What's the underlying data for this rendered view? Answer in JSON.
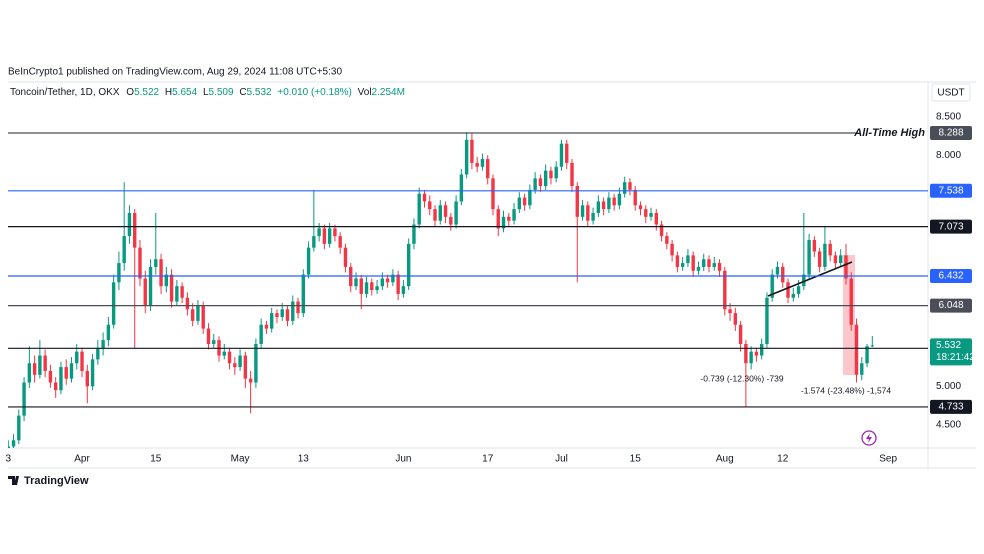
{
  "chart_data": {
    "type": "candlestick",
    "title": "BeInCrypto1 published on TradingView.com, Aug 29, 2024 11:08 UTC+5:30",
    "symbol": "Toncoin/Tether, 1D, OKX",
    "legend": [
      {
        "label": "O",
        "value": "5.522"
      },
      {
        "label": "H",
        "value": "5.654"
      },
      {
        "label": "L",
        "value": "5.509"
      },
      {
        "label": "C",
        "value": "5.532"
      }
    ],
    "change": "+0.010 (+0.18%)",
    "volume": {
      "label": "Vol",
      "value": "2.254M"
    },
    "currency": "USDT",
    "branding": "TradingView",
    "colors": {
      "up": "#089981",
      "down": "#f23645"
    },
    "xlim": [
      "2024-03-17",
      "2024-09-08"
    ],
    "xticks": [
      {
        "value": "2024-03-18",
        "label": "3"
      },
      {
        "value": "2024-04-01",
        "label": "Apr"
      },
      {
        "value": "2024-04-15",
        "label": "15"
      },
      {
        "value": "2024-05-01",
        "label": "May"
      },
      {
        "value": "2024-05-13",
        "label": "13"
      },
      {
        "value": "2024-06-01",
        "label": "Jun"
      },
      {
        "value": "2024-06-17",
        "label": "17"
      },
      {
        "value": "2024-07-01",
        "label": "Jul"
      },
      {
        "value": "2024-07-15",
        "label": "15"
      },
      {
        "value": "2024-08-01",
        "label": "Aug"
      },
      {
        "value": "2024-08-12",
        "label": "12"
      },
      {
        "value": "2024-09-01",
        "label": "Sep"
      }
    ],
    "ylim": [
      4.2,
      8.95
    ],
    "yticks": [
      {
        "value": 8.5,
        "label": "8.500"
      },
      {
        "value": 8,
        "label": "8.000"
      },
      {
        "value": 5,
        "label": "5.000"
      },
      {
        "value": 4.5,
        "label": "4.500"
      }
    ],
    "levels": [
      {
        "value": 8.288,
        "color": "#4a4e59",
        "name": "All-Time High"
      },
      {
        "value": 7.538,
        "color": "#2962ff"
      },
      {
        "value": 7.073,
        "color": "#131722"
      },
      {
        "value": 6.432,
        "color": "#2962ff"
      },
      {
        "value": 6.048,
        "color": "#4a4e59"
      },
      {
        "value": 5.494,
        "color": "#131722"
      },
      {
        "value": 4.733,
        "color": "#131722"
      }
    ],
    "last": {
      "value": 5.532,
      "countdown": "18:21:42",
      "color": "#089981"
    },
    "annotations": [
      "-0.739 (-12.30%) -739",
      "-1.574 (-23.48%) -1,574"
    ],
    "x": [
      "2024-03-18",
      "2024-03-19",
      "2024-03-20",
      "2024-03-21",
      "2024-03-22",
      "2024-03-23",
      "2024-03-24",
      "2024-03-25",
      "2024-03-26",
      "2024-03-27",
      "2024-03-28",
      "2024-03-29",
      "2024-03-30",
      "2024-03-31",
      "2024-04-01",
      "2024-04-02",
      "2024-04-03",
      "2024-04-04",
      "2024-04-05",
      "2024-04-06",
      "2024-04-07",
      "2024-04-08",
      "2024-04-09",
      "2024-04-10",
      "2024-04-11",
      "2024-04-12",
      "2024-04-13",
      "2024-04-14",
      "2024-04-15",
      "2024-04-16",
      "2024-04-17",
      "2024-04-18",
      "2024-04-19",
      "2024-04-20",
      "2024-04-21",
      "2024-04-22",
      "2024-04-23",
      "2024-04-24",
      "2024-04-25",
      "2024-04-26",
      "2024-04-27",
      "2024-04-28",
      "2024-04-29",
      "2024-04-30",
      "2024-05-01",
      "2024-05-02",
      "2024-05-03",
      "2024-05-04",
      "2024-05-05",
      "2024-05-06",
      "2024-05-07",
      "2024-05-08",
      "2024-05-09",
      "2024-05-10",
      "2024-05-11",
      "2024-05-12",
      "2024-05-13",
      "2024-05-14",
      "2024-05-15",
      "2024-05-16",
      "2024-05-17",
      "2024-05-18",
      "2024-05-19",
      "2024-05-20",
      "2024-05-21",
      "2024-05-22",
      "2024-05-23",
      "2024-05-24",
      "2024-05-25",
      "2024-05-26",
      "2024-05-27",
      "2024-05-28",
      "2024-05-29",
      "2024-05-30",
      "2024-05-31",
      "2024-06-01",
      "2024-06-02",
      "2024-06-03",
      "2024-06-04",
      "2024-06-05",
      "2024-06-06",
      "2024-06-07",
      "2024-06-08",
      "2024-06-09",
      "2024-06-10",
      "2024-06-11",
      "2024-06-12",
      "2024-06-13",
      "2024-06-14",
      "2024-06-15",
      "2024-06-16",
      "2024-06-17",
      "2024-06-18",
      "2024-06-19",
      "2024-06-20",
      "2024-06-21",
      "2024-06-22",
      "2024-06-23",
      "2024-06-24",
      "2024-06-25",
      "2024-06-26",
      "2024-06-27",
      "2024-06-28",
      "2024-06-29",
      "2024-06-30",
      "2024-07-01",
      "2024-07-02",
      "2024-07-03",
      "2024-07-04",
      "2024-07-05",
      "2024-07-06",
      "2024-07-07",
      "2024-07-08",
      "2024-07-09",
      "2024-07-10",
      "2024-07-11",
      "2024-07-12",
      "2024-07-13",
      "2024-07-14",
      "2024-07-15",
      "2024-07-16",
      "2024-07-17",
      "2024-07-18",
      "2024-07-19",
      "2024-07-20",
      "2024-07-21",
      "2024-07-22",
      "2024-07-23",
      "2024-07-24",
      "2024-07-25",
      "2024-07-26",
      "2024-07-27",
      "2024-07-28",
      "2024-07-29",
      "2024-07-30",
      "2024-07-31",
      "2024-08-01",
      "2024-08-02",
      "2024-08-03",
      "2024-08-04",
      "2024-08-05",
      "2024-08-06",
      "2024-08-07",
      "2024-08-08",
      "2024-08-09",
      "2024-08-10",
      "2024-08-11",
      "2024-08-12",
      "2024-08-13",
      "2024-08-14",
      "2024-08-15",
      "2024-08-16",
      "2024-08-17",
      "2024-08-18",
      "2024-08-19",
      "2024-08-20",
      "2024-08-21",
      "2024-08-22",
      "2024-08-23",
      "2024-08-24",
      "2024-08-25",
      "2024-08-26",
      "2024-08-27",
      "2024-08-28",
      "2024-08-29"
    ],
    "ohlc": [
      [
        4.18,
        4.3,
        4.12,
        4.22
      ],
      [
        4.22,
        4.38,
        4.18,
        4.3
      ],
      [
        4.3,
        4.7,
        4.25,
        4.62
      ],
      [
        4.62,
        5.12,
        4.55,
        5.05
      ],
      [
        5.05,
        5.52,
        4.98,
        5.3
      ],
      [
        5.3,
        5.4,
        5.05,
        5.15
      ],
      [
        5.15,
        5.6,
        5.1,
        5.4
      ],
      [
        5.4,
        5.48,
        5.12,
        5.2
      ],
      [
        5.2,
        5.28,
        4.98,
        5.05
      ],
      [
        5.05,
        5.12,
        4.85,
        4.95
      ],
      [
        4.95,
        5.32,
        4.9,
        5.25
      ],
      [
        5.25,
        5.35,
        5.02,
        5.1
      ],
      [
        5.1,
        5.38,
        5.05,
        5.3
      ],
      [
        5.3,
        5.55,
        5.22,
        5.45
      ],
      [
        5.45,
        5.5,
        5.12,
        5.2
      ],
      [
        5.2,
        5.28,
        4.78,
        5.0
      ],
      [
        5.0,
        5.42,
        4.95,
        5.35
      ],
      [
        5.35,
        5.6,
        5.28,
        5.5
      ],
      [
        5.5,
        5.7,
        5.4,
        5.6
      ],
      [
        5.6,
        5.9,
        5.52,
        5.8
      ],
      [
        5.8,
        6.45,
        5.75,
        6.35
      ],
      [
        6.35,
        6.75,
        6.25,
        6.6
      ],
      [
        6.6,
        7.65,
        6.5,
        6.95
      ],
      [
        6.95,
        7.35,
        6.85,
        7.25
      ],
      [
        7.25,
        7.3,
        5.5,
        6.8
      ],
      [
        6.8,
        6.9,
        6.3,
        6.4
      ],
      [
        6.4,
        6.5,
        5.95,
        6.05
      ],
      [
        6.05,
        6.65,
        5.98,
        6.55
      ],
      [
        6.55,
        7.25,
        6.45,
        6.65
      ],
      [
        6.65,
        6.72,
        6.2,
        6.3
      ],
      [
        6.3,
        6.55,
        6.22,
        6.45
      ],
      [
        6.45,
        6.52,
        6.02,
        6.1
      ],
      [
        6.1,
        6.38,
        6.05,
        6.3
      ],
      [
        6.3,
        6.35,
        6.08,
        6.15
      ],
      [
        6.15,
        6.22,
        5.92,
        6.0
      ],
      [
        6.0,
        6.08,
        5.78,
        5.85
      ],
      [
        5.85,
        6.12,
        5.8,
        6.05
      ],
      [
        6.05,
        6.1,
        5.68,
        5.75
      ],
      [
        5.75,
        5.82,
        5.48,
        5.55
      ],
      [
        5.55,
        5.68,
        5.5,
        5.6
      ],
      [
        5.6,
        5.65,
        5.32,
        5.4
      ],
      [
        5.4,
        5.55,
        5.35,
        5.45
      ],
      [
        5.45,
        5.5,
        5.22,
        5.3
      ],
      [
        5.3,
        5.38,
        5.15,
        5.25
      ],
      [
        5.25,
        5.48,
        5.2,
        5.4
      ],
      [
        5.4,
        5.45,
        4.98,
        5.1
      ],
      [
        5.1,
        5.2,
        4.65,
        5.05
      ],
      [
        5.05,
        5.62,
        4.98,
        5.55
      ],
      [
        5.55,
        5.88,
        5.5,
        5.8
      ],
      [
        5.8,
        5.85,
        5.68,
        5.75
      ],
      [
        5.75,
        6.02,
        5.7,
        5.95
      ],
      [
        5.95,
        6.0,
        5.82,
        5.9
      ],
      [
        5.9,
        6.08,
        5.85,
        6.0
      ],
      [
        6.0,
        6.05,
        5.78,
        5.85
      ],
      [
        5.85,
        6.18,
        5.8,
        6.1
      ],
      [
        6.1,
        6.15,
        5.88,
        5.95
      ],
      [
        5.95,
        6.52,
        5.9,
        6.45
      ],
      [
        6.45,
        6.88,
        6.4,
        6.8
      ],
      [
        6.8,
        7.55,
        6.75,
        6.95
      ],
      [
        6.95,
        7.12,
        6.88,
        7.05
      ],
      [
        7.05,
        7.1,
        6.78,
        6.85
      ],
      [
        6.85,
        7.12,
        6.8,
        7.05
      ],
      [
        7.05,
        7.1,
        6.88,
        6.95
      ],
      [
        6.95,
        7.0,
        6.72,
        6.8
      ],
      [
        6.8,
        6.85,
        6.48,
        6.55
      ],
      [
        6.55,
        6.6,
        6.22,
        6.3
      ],
      [
        6.3,
        6.48,
        6.25,
        6.4
      ],
      [
        6.4,
        6.45,
        6.0,
        6.2
      ],
      [
        6.2,
        6.42,
        6.15,
        6.35
      ],
      [
        6.35,
        6.4,
        6.18,
        6.25
      ],
      [
        6.25,
        6.38,
        6.2,
        6.3
      ],
      [
        6.3,
        6.48,
        6.25,
        6.4
      ],
      [
        6.4,
        6.45,
        6.28,
        6.35
      ],
      [
        6.35,
        6.52,
        6.3,
        6.45
      ],
      [
        6.45,
        6.5,
        6.12,
        6.2
      ],
      [
        6.2,
        6.38,
        6.15,
        6.3
      ],
      [
        6.3,
        6.92,
        6.25,
        6.85
      ],
      [
        6.85,
        7.18,
        6.78,
        7.1
      ],
      [
        7.1,
        7.58,
        7.05,
        7.5
      ],
      [
        7.5,
        7.55,
        7.32,
        7.4
      ],
      [
        7.4,
        7.48,
        7.22,
        7.3
      ],
      [
        7.3,
        7.35,
        7.08,
        7.15
      ],
      [
        7.15,
        7.42,
        7.1,
        7.35
      ],
      [
        7.35,
        7.4,
        7.12,
        7.2
      ],
      [
        7.2,
        7.25,
        7.02,
        7.1
      ],
      [
        7.1,
        7.48,
        7.05,
        7.4
      ],
      [
        7.4,
        7.82,
        7.35,
        7.75
      ],
      [
        7.75,
        8.3,
        7.7,
        8.2
      ],
      [
        8.2,
        8.28,
        7.82,
        7.9
      ],
      [
        7.9,
        7.98,
        7.78,
        7.85
      ],
      [
        7.85,
        8.02,
        7.8,
        7.95
      ],
      [
        7.95,
        8.0,
        7.62,
        7.7
      ],
      [
        7.7,
        7.75,
        7.22,
        7.3
      ],
      [
        7.3,
        7.35,
        6.95,
        7.05
      ],
      [
        7.05,
        7.28,
        7.0,
        7.2
      ],
      [
        7.2,
        7.25,
        7.08,
        7.15
      ],
      [
        7.15,
        7.38,
        7.1,
        7.3
      ],
      [
        7.3,
        7.52,
        7.25,
        7.45
      ],
      [
        7.45,
        7.5,
        7.28,
        7.35
      ],
      [
        7.35,
        7.62,
        7.3,
        7.55
      ],
      [
        7.55,
        7.78,
        7.5,
        7.7
      ],
      [
        7.7,
        7.75,
        7.52,
        7.6
      ],
      [
        7.6,
        7.88,
        7.55,
        7.8
      ],
      [
        7.8,
        7.85,
        7.62,
        7.7
      ],
      [
        7.7,
        7.92,
        7.65,
        7.85
      ],
      [
        7.85,
        8.2,
        7.8,
        8.15
      ],
      [
        8.15,
        8.2,
        7.82,
        7.9
      ],
      [
        7.9,
        7.95,
        7.52,
        7.6
      ],
      [
        7.6,
        7.65,
        6.35,
        7.2
      ],
      [
        7.2,
        7.42,
        7.15,
        7.35
      ],
      [
        7.35,
        7.4,
        7.08,
        7.15
      ],
      [
        7.15,
        7.32,
        7.1,
        7.25
      ],
      [
        7.25,
        7.48,
        7.2,
        7.4
      ],
      [
        7.4,
        7.45,
        7.22,
        7.3
      ],
      [
        7.3,
        7.52,
        7.25,
        7.45
      ],
      [
        7.45,
        7.5,
        7.28,
        7.35
      ],
      [
        7.35,
        7.58,
        7.3,
        7.5
      ],
      [
        7.5,
        7.72,
        7.45,
        7.65
      ],
      [
        7.65,
        7.7,
        7.48,
        7.55
      ],
      [
        7.55,
        7.6,
        7.28,
        7.35
      ],
      [
        7.35,
        7.4,
        7.22,
        7.3
      ],
      [
        7.3,
        7.35,
        7.12,
        7.2
      ],
      [
        7.2,
        7.32,
        7.15,
        7.25
      ],
      [
        7.25,
        7.3,
        7.02,
        7.1
      ],
      [
        7.1,
        7.15,
        6.88,
        6.95
      ],
      [
        6.95,
        7.0,
        6.78,
        6.85
      ],
      [
        6.85,
        6.9,
        6.62,
        6.7
      ],
      [
        6.7,
        6.75,
        6.48,
        6.55
      ],
      [
        6.55,
        6.68,
        6.5,
        6.6
      ],
      [
        6.6,
        6.78,
        6.55,
        6.7
      ],
      [
        6.7,
        6.75,
        6.42,
        6.5
      ],
      [
        6.5,
        6.62,
        6.45,
        6.55
      ],
      [
        6.55,
        6.72,
        6.5,
        6.65
      ],
      [
        6.65,
        6.7,
        6.48,
        6.55
      ],
      [
        6.55,
        6.68,
        6.5,
        6.6
      ],
      [
        6.6,
        6.65,
        6.42,
        6.5
      ],
      [
        6.5,
        6.55,
        5.92,
        6.0
      ],
      [
        6.0,
        6.08,
        5.85,
        5.95
      ],
      [
        5.95,
        6.02,
        5.72,
        5.8
      ],
      [
        5.8,
        5.85,
        5.45,
        5.55
      ],
      [
        5.55,
        5.6,
        4.73,
        5.3
      ],
      [
        5.3,
        5.52,
        5.22,
        5.45
      ],
      [
        5.45,
        5.5,
        5.32,
        5.4
      ],
      [
        5.4,
        5.62,
        5.35,
        5.55
      ],
      [
        5.55,
        6.22,
        5.5,
        6.15
      ],
      [
        6.15,
        6.52,
        6.1,
        6.45
      ],
      [
        6.45,
        6.62,
        6.4,
        6.55
      ],
      [
        6.55,
        6.6,
        6.28,
        6.35
      ],
      [
        6.35,
        6.4,
        6.08,
        6.15
      ],
      [
        6.15,
        6.28,
        6.1,
        6.2
      ],
      [
        6.2,
        6.38,
        6.15,
        6.3
      ],
      [
        6.3,
        7.25,
        6.25,
        6.45
      ],
      [
        6.45,
        6.98,
        6.4,
        6.9
      ],
      [
        6.9,
        6.95,
        6.68,
        6.75
      ],
      [
        6.75,
        6.8,
        6.48,
        6.55
      ],
      [
        6.55,
        7.08,
        6.5,
        6.85
      ],
      [
        6.85,
        6.9,
        6.62,
        6.7
      ],
      [
        6.7,
        6.75,
        6.52,
        6.6
      ],
      [
        6.6,
        6.78,
        6.55,
        6.7
      ],
      [
        6.7,
        6.85,
        6.32,
        6.4
      ],
      [
        6.4,
        6.48,
        5.72,
        5.8
      ],
      [
        5.8,
        5.88,
        5.05,
        5.15
      ],
      [
        5.15,
        5.38,
        5.08,
        5.3
      ],
      [
        5.3,
        5.55,
        5.25,
        5.522
      ],
      [
        5.522,
        5.654,
        5.509,
        5.532
      ]
    ]
  }
}
